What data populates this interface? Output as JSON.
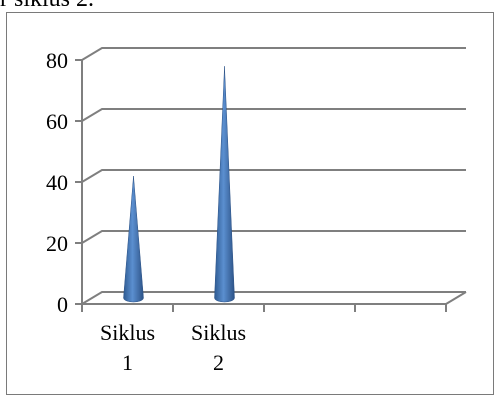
{
  "caption": "r siklus 2.",
  "chart_data": {
    "type": "bar",
    "shape": "cone",
    "categories": [
      "Siklus 1",
      "Siklus 2"
    ],
    "category_lines": [
      [
        "Siklus",
        "1"
      ],
      [
        "Siklus",
        "2"
      ]
    ],
    "num_slots": 4,
    "values": [
      40,
      76
    ],
    "ylim": [
      0,
      80
    ],
    "yticks": [
      "0",
      "20",
      "40",
      "60",
      "80"
    ],
    "grid": true,
    "colors": {
      "bar": "#4f81bd",
      "grid": "#7f7f7f"
    }
  }
}
